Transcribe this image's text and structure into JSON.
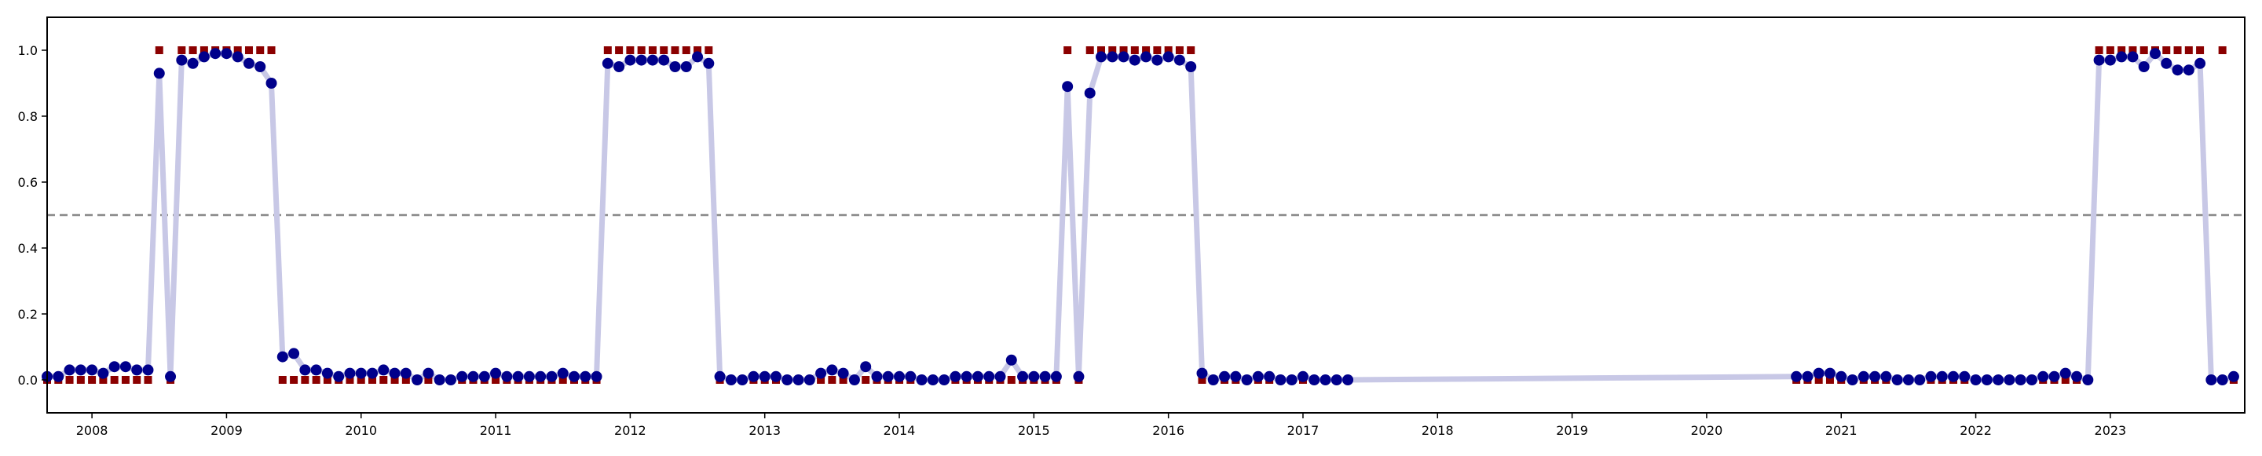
{
  "chart_data": {
    "type": "line",
    "title": "",
    "xlabel": "",
    "ylabel": "",
    "xlim": [
      "2007-09-01",
      "2023-12-31"
    ],
    "ylim": [
      -0.1,
      1.1
    ],
    "grid": false,
    "legend": "none",
    "x_ticks": [
      "2008",
      "2009",
      "2010",
      "2011",
      "2012",
      "2013",
      "2014",
      "2015",
      "2016",
      "2017",
      "2018",
      "2019",
      "2020",
      "2021",
      "2022",
      "2023"
    ],
    "y_ticks": [
      "0.0",
      "0.2",
      "0.4",
      "0.6",
      "0.8",
      "1.0"
    ],
    "threshold": 0.5,
    "colors": {
      "line": "#c8c8e6",
      "predicted": "#00008b",
      "actual": "#8b0000",
      "threshold": "#888888",
      "frame": "#000000"
    },
    "series": [
      {
        "x": [
          "2007-09",
          "2007-10",
          "2007-11",
          "2007-12",
          "2008-01",
          "2008-02",
          "2008-03",
          "2008-04",
          "2008-05",
          "2008-06",
          "2008-07",
          "2008-08",
          "2008-09",
          "2008-10",
          "2008-11",
          "2008-12",
          "2009-01",
          "2009-02",
          "2009-03",
          "2009-04",
          "2009-05",
          "2009-06",
          "2009-07",
          "2009-08",
          "2009-09",
          "2009-10",
          "2009-11",
          "2009-12",
          "2010-01",
          "2010-02",
          "2010-03",
          "2010-04",
          "2010-05",
          "2010-06",
          "2010-07",
          "2010-08",
          "2010-09",
          "2010-10",
          "2010-11",
          "2010-12",
          "2011-01",
          "2011-02",
          "2011-03",
          "2011-04",
          "2011-05",
          "2011-06",
          "2011-07",
          "2011-08",
          "2011-09",
          "2011-10",
          "2011-11",
          "2011-12",
          "2012-01",
          "2012-02",
          "2012-03",
          "2012-04",
          "2012-05",
          "2012-06",
          "2012-07",
          "2012-08",
          "2012-09",
          "2012-10",
          "2012-11",
          "2012-12",
          "2013-01",
          "2013-02",
          "2013-03",
          "2013-04",
          "2013-05",
          "2013-06",
          "2013-07",
          "2013-08",
          "2013-09",
          "2013-10",
          "2013-11",
          "2013-12",
          "2014-01",
          "2014-02",
          "2014-03",
          "2014-04",
          "2014-05",
          "2014-06",
          "2014-07",
          "2014-08",
          "2014-09",
          "2014-10",
          "2014-11",
          "2014-12",
          "2015-01",
          "2015-02",
          "2015-03",
          "2015-04",
          "2015-05",
          "2015-06",
          "2015-07",
          "2015-08",
          "2015-09",
          "2015-10",
          "2015-11",
          "2015-12",
          "2016-01",
          "2016-02",
          "2016-03",
          "2016-04",
          "2016-05",
          "2016-06",
          "2016-07",
          "2016-08",
          "2016-09",
          "2016-10",
          "2016-11",
          "2016-12",
          "2017-01",
          "2017-02",
          "2017-03",
          "2017-04",
          "2017-05",
          "2020-09",
          "2020-10",
          "2020-11",
          "2020-12",
          "2021-01",
          "2021-02",
          "2021-03",
          "2021-04",
          "2021-05",
          "2021-06",
          "2021-07",
          "2021-08",
          "2021-09",
          "2021-10",
          "2021-11",
          "2021-12",
          "2022-01",
          "2022-02",
          "2022-03",
          "2022-04",
          "2022-05",
          "2022-06",
          "2022-07",
          "2022-08",
          "2022-09",
          "2022-10",
          "2022-11",
          "2022-12",
          "2023-01",
          "2023-02",
          "2023-03",
          "2023-04",
          "2023-05",
          "2023-06",
          "2023-07",
          "2023-08",
          "2023-09",
          "2023-10",
          "2023-11",
          "2023-12"
        ],
        "y": [
          0.01,
          0.01,
          0.03,
          0.03,
          0.03,
          0.02,
          0.04,
          0.04,
          0.03,
          0.03,
          0.93,
          0.01,
          0.97,
          0.96,
          0.98,
          0.99,
          0.99,
          0.98,
          0.96,
          0.95,
          0.9,
          0.07,
          0.08,
          0.03,
          0.03,
          0.02,
          0.01,
          0.02,
          0.02,
          0.02,
          0.03,
          0.02,
          0.02,
          0.0,
          0.02,
          0.0,
          0.0,
          0.01,
          0.01,
          0.01,
          0.02,
          0.01,
          0.01,
          0.01,
          0.01,
          0.01,
          0.02,
          0.01,
          0.01,
          0.01,
          0.96,
          0.95,
          0.97,
          0.97,
          0.97,
          0.97,
          0.95,
          0.95,
          0.98,
          0.96,
          0.01,
          0.0,
          0.0,
          0.01,
          0.01,
          0.01,
          0.0,
          0.0,
          0.0,
          0.02,
          0.03,
          0.02,
          0.0,
          0.04,
          0.01,
          0.01,
          0.01,
          0.01,
          0.0,
          0.0,
          0.0,
          0.01,
          0.01,
          0.01,
          0.01,
          0.01,
          0.06,
          0.01,
          0.01,
          0.01,
          0.01,
          0.89,
          0.01,
          0.87,
          0.98,
          0.98,
          0.98,
          0.97,
          0.98,
          0.97,
          0.98,
          0.97,
          0.95,
          0.02,
          0.0,
          0.01,
          0.01,
          0.0,
          0.01,
          0.01,
          0.0,
          0.0,
          0.01,
          0.0,
          0.0,
          0.0,
          0.0,
          0.01,
          0.01,
          0.02,
          0.02,
          0.01,
          0.0,
          0.01,
          0.01,
          0.01,
          0.0,
          0.0,
          0.0,
          0.01,
          0.01,
          0.01,
          0.01,
          0.0,
          0.0,
          0.0,
          0.0,
          0.0,
          0.0,
          0.01,
          0.01,
          0.02,
          0.01,
          0.0,
          0.97,
          0.97,
          0.98,
          0.98,
          0.95,
          0.99,
          0.96,
          0.94,
          0.94,
          0.96,
          0.0,
          0.0,
          0.01
        ]
      },
      {
        "x": [
          "2007-09",
          "2007-10",
          "2007-11",
          "2007-12",
          "2008-01",
          "2008-02",
          "2008-03",
          "2008-04",
          "2008-05",
          "2008-06",
          "2008-07",
          "2008-08",
          "2008-09",
          "2008-10",
          "2008-11",
          "2008-12",
          "2009-01",
          "2009-02",
          "2009-03",
          "2009-04",
          "2009-05",
          "2009-06",
          "2009-07",
          "2009-08",
          "2009-09",
          "2009-10",
          "2009-11",
          "2009-12",
          "2010-01",
          "2010-02",
          "2010-03",
          "2010-04",
          "2010-05",
          "2010-06",
          "2010-07",
          "2010-08",
          "2010-09",
          "2010-10",
          "2010-11",
          "2010-12",
          "2011-01",
          "2011-02",
          "2011-03",
          "2011-04",
          "2011-05",
          "2011-06",
          "2011-07",
          "2011-08",
          "2011-09",
          "2011-10",
          "2011-11",
          "2011-12",
          "2012-01",
          "2012-02",
          "2012-03",
          "2012-04",
          "2012-05",
          "2012-06",
          "2012-07",
          "2012-08",
          "2012-09",
          "2012-10",
          "2012-11",
          "2012-12",
          "2013-01",
          "2013-02",
          "2013-03",
          "2013-04",
          "2013-05",
          "2013-06",
          "2013-07",
          "2013-08",
          "2013-09",
          "2013-10",
          "2013-11",
          "2013-12",
          "2014-01",
          "2014-02",
          "2014-03",
          "2014-04",
          "2014-05",
          "2014-06",
          "2014-07",
          "2014-08",
          "2014-09",
          "2014-10",
          "2014-11",
          "2014-12",
          "2015-01",
          "2015-02",
          "2015-03",
          "2015-04",
          "2015-05",
          "2015-06",
          "2015-07",
          "2015-08",
          "2015-09",
          "2015-10",
          "2015-11",
          "2015-12",
          "2016-01",
          "2016-02",
          "2016-03",
          "2016-04",
          "2016-05",
          "2016-06",
          "2016-07",
          "2016-08",
          "2016-09",
          "2016-10",
          "2016-11",
          "2016-12",
          "2017-01",
          "2017-02",
          "2017-03",
          "2017-04",
          "2017-05",
          "2020-09",
          "2020-10",
          "2020-11",
          "2020-12",
          "2021-01",
          "2021-02",
          "2021-03",
          "2021-04",
          "2021-05",
          "2021-06",
          "2021-07",
          "2021-08",
          "2021-09",
          "2021-10",
          "2021-11",
          "2021-12",
          "2022-01",
          "2022-02",
          "2022-03",
          "2022-04",
          "2022-05",
          "2022-06",
          "2022-07",
          "2022-08",
          "2022-09",
          "2022-10",
          "2022-11",
          "2022-12",
          "2023-01",
          "2023-02",
          "2023-03",
          "2023-04",
          "2023-05",
          "2023-06",
          "2023-07",
          "2023-08",
          "2023-09",
          "2023-10",
          "2023-11",
          "2023-12"
        ],
        "y": [
          0,
          0,
          0,
          0,
          0,
          0,
          0,
          0,
          0,
          0,
          1,
          0,
          1,
          1,
          1,
          1,
          1,
          1,
          1,
          1,
          1,
          0,
          0,
          0,
          0,
          0,
          0,
          0,
          0,
          0,
          0,
          0,
          0,
          0,
          0,
          0,
          0,
          0,
          0,
          0,
          0,
          0,
          0,
          0,
          0,
          0,
          0,
          0,
          0,
          0,
          1,
          1,
          1,
          1,
          1,
          1,
          1,
          1,
          1,
          1,
          0,
          0,
          0,
          0,
          0,
          0,
          0,
          0,
          0,
          0,
          0,
          0,
          0,
          0,
          0,
          0,
          0,
          0,
          0,
          0,
          0,
          0,
          0,
          0,
          0,
          0,
          0,
          0,
          0,
          0,
          0,
          1,
          0,
          1,
          1,
          1,
          1,
          1,
          1,
          1,
          1,
          1,
          1,
          0,
          0,
          0,
          0,
          0,
          0,
          0,
          0,
          0,
          0,
          0,
          0,
          0,
          0,
          0,
          0,
          0,
          0,
          0,
          0,
          0,
          0,
          0,
          0,
          0,
          0,
          0,
          0,
          0,
          0,
          0,
          0,
          0,
          0,
          0,
          0,
          0,
          0,
          0,
          0,
          0,
          1,
          1,
          1,
          1,
          1,
          1,
          1,
          1,
          1,
          1,
          0,
          1,
          0
        ]
      }
    ]
  }
}
